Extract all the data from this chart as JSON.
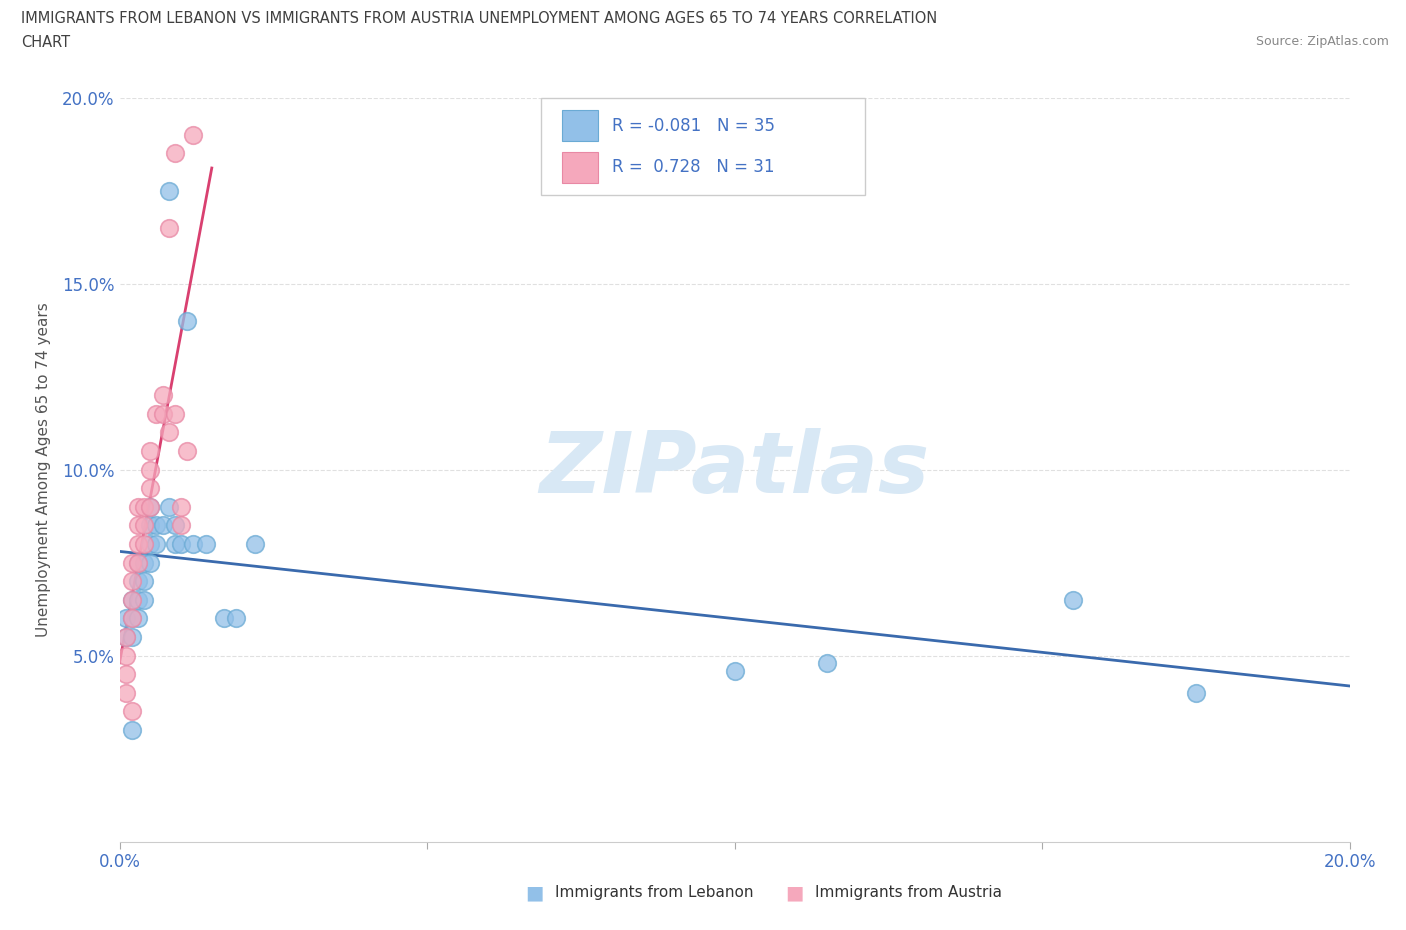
{
  "title_line1": "IMMIGRANTS FROM LEBANON VS IMMIGRANTS FROM AUSTRIA UNEMPLOYMENT AMONG AGES 65 TO 74 YEARS CORRELATION",
  "title_line2": "CHART",
  "source": "Source: ZipAtlas.com",
  "ylabel": "Unemployment Among Ages 65 to 74 years",
  "xlim": [
    0.0,
    0.2
  ],
  "ylim": [
    0.0,
    0.2
  ],
  "blue_color": "#92C0E8",
  "pink_color": "#F5A8BC",
  "blue_edge_color": "#6aaad4",
  "pink_edge_color": "#e888a4",
  "blue_line_color": "#3A6AAD",
  "pink_line_color": "#D94070",
  "watermark_color": "#D8E8F5",
  "grid_color": "#E0E0E0",
  "axis_color": "#4472C4",
  "title_color": "#404040",
  "background_color": "#FFFFFF",
  "lebanon_x": [
    0.001,
    0.001,
    0.002,
    0.002,
    0.002,
    0.003,
    0.003,
    0.003,
    0.003,
    0.004,
    0.004,
    0.004,
    0.005,
    0.005,
    0.005,
    0.005,
    0.006,
    0.006,
    0.007,
    0.008,
    0.008,
    0.009,
    0.009,
    0.01,
    0.011,
    0.012,
    0.014,
    0.017,
    0.019,
    0.022,
    0.1,
    0.115,
    0.155,
    0.175,
    0.002
  ],
  "lebanon_y": [
    0.06,
    0.055,
    0.065,
    0.06,
    0.055,
    0.075,
    0.07,
    0.065,
    0.06,
    0.075,
    0.07,
    0.065,
    0.09,
    0.085,
    0.08,
    0.075,
    0.085,
    0.08,
    0.085,
    0.09,
    0.175,
    0.085,
    0.08,
    0.08,
    0.14,
    0.08,
    0.08,
    0.06,
    0.06,
    0.08,
    0.046,
    0.048,
    0.065,
    0.04,
    0.03
  ],
  "austria_x": [
    0.001,
    0.001,
    0.001,
    0.002,
    0.002,
    0.002,
    0.002,
    0.003,
    0.003,
    0.003,
    0.003,
    0.004,
    0.004,
    0.004,
    0.005,
    0.005,
    0.005,
    0.005,
    0.006,
    0.007,
    0.007,
    0.008,
    0.008,
    0.009,
    0.009,
    0.01,
    0.01,
    0.011,
    0.012,
    0.001,
    0.002
  ],
  "austria_y": [
    0.055,
    0.05,
    0.045,
    0.075,
    0.07,
    0.065,
    0.06,
    0.09,
    0.085,
    0.08,
    0.075,
    0.09,
    0.085,
    0.08,
    0.105,
    0.1,
    0.095,
    0.09,
    0.115,
    0.12,
    0.115,
    0.165,
    0.11,
    0.185,
    0.115,
    0.09,
    0.085,
    0.105,
    0.19,
    0.04,
    0.035
  ],
  "legend_text_blue": "R = -0.081   N = 35",
  "legend_text_pink": "R =  0.728   N = 31",
  "bottom_legend_lebanon": "Immigrants from Lebanon",
  "bottom_legend_austria": "Immigrants from Austria"
}
